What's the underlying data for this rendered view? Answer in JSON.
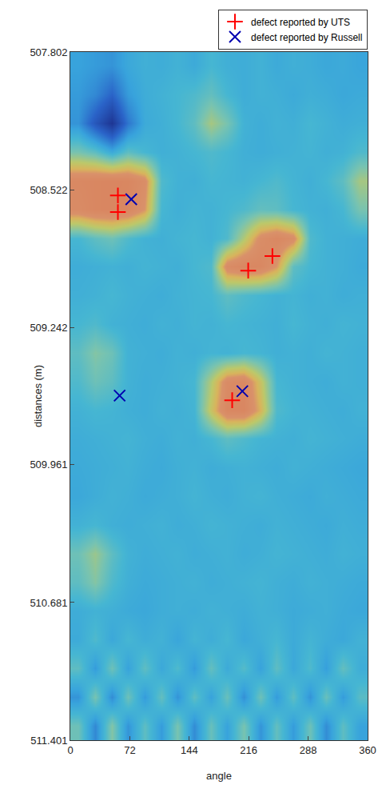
{
  "chart_data": {
    "type": "heatmap",
    "x_label": "angle",
    "y_label": "distances (m)",
    "xlim": [
      0,
      360
    ],
    "xticks": [
      0,
      72,
      144,
      216,
      288,
      360
    ],
    "ylim": [
      507.802,
      511.401
    ],
    "yticks": [
      507.802,
      508.522,
      509.242,
      509.961,
      510.681,
      511.401
    ],
    "grid": false,
    "legend": "above",
    "zlim": [
      0,
      1
    ],
    "cells": {
      "x": [
        10,
        30,
        50,
        70,
        90,
        110,
        130,
        150,
        170,
        190,
        210,
        230,
        250,
        270,
        290,
        310,
        330,
        350
      ],
      "y": [
        507.875,
        508.025,
        508.175,
        508.325,
        508.475,
        508.625,
        508.775,
        508.925,
        509.075,
        509.225,
        509.375,
        509.525,
        509.675,
        509.825,
        509.975,
        510.125,
        510.275,
        510.425,
        510.575,
        510.725,
        510.875,
        511.025,
        511.175,
        511.325
      ],
      "z": [
        [
          0.42,
          0.4,
          0.38,
          0.44,
          0.47,
          0.46,
          0.48,
          0.45,
          0.5,
          0.47,
          0.46,
          0.48,
          0.45,
          0.47,
          0.46,
          0.44,
          0.45,
          0.43
        ],
        [
          0.4,
          0.35,
          0.25,
          0.4,
          0.46,
          0.48,
          0.5,
          0.52,
          0.56,
          0.5,
          0.46,
          0.48,
          0.47,
          0.45,
          0.47,
          0.46,
          0.44,
          0.45
        ],
        [
          0.38,
          0.2,
          0.05,
          0.3,
          0.45,
          0.47,
          0.5,
          0.55,
          0.68,
          0.6,
          0.48,
          0.46,
          0.48,
          0.47,
          0.5,
          0.48,
          0.46,
          0.47
        ],
        [
          0.6,
          0.55,
          0.45,
          0.55,
          0.5,
          0.47,
          0.48,
          0.5,
          0.52,
          0.5,
          0.47,
          0.46,
          0.47,
          0.48,
          0.49,
          0.47,
          0.48,
          0.52
        ],
        [
          0.95,
          0.97,
          0.98,
          0.97,
          0.9,
          0.52,
          0.48,
          0.47,
          0.5,
          0.49,
          0.48,
          0.5,
          0.52,
          0.49,
          0.47,
          0.5,
          0.55,
          0.68
        ],
        [
          0.92,
          0.97,
          0.98,
          0.96,
          0.85,
          0.5,
          0.47,
          0.49,
          0.48,
          0.5,
          0.52,
          0.56,
          0.55,
          0.5,
          0.48,
          0.47,
          0.5,
          0.6
        ],
        [
          0.5,
          0.55,
          0.58,
          0.52,
          0.48,
          0.47,
          0.49,
          0.5,
          0.48,
          0.52,
          0.7,
          0.9,
          0.96,
          0.9,
          0.52,
          0.48,
          0.47,
          0.46
        ],
        [
          0.46,
          0.47,
          0.48,
          0.47,
          0.49,
          0.48,
          0.47,
          0.5,
          0.52,
          0.92,
          0.97,
          0.96,
          0.85,
          0.55,
          0.5,
          0.48,
          0.47,
          0.45
        ],
        [
          0.47,
          0.48,
          0.5,
          0.48,
          0.47,
          0.46,
          0.48,
          0.49,
          0.5,
          0.55,
          0.52,
          0.5,
          0.48,
          0.49,
          0.47,
          0.48,
          0.46,
          0.47
        ],
        [
          0.5,
          0.52,
          0.48,
          0.47,
          0.46,
          0.48,
          0.47,
          0.49,
          0.48,
          0.5,
          0.49,
          0.48,
          0.47,
          0.5,
          0.48,
          0.47,
          0.49,
          0.48
        ],
        [
          0.55,
          0.62,
          0.58,
          0.48,
          0.47,
          0.46,
          0.48,
          0.47,
          0.49,
          0.48,
          0.5,
          0.49,
          0.47,
          0.48,
          0.47,
          0.49,
          0.48,
          0.47
        ],
        [
          0.52,
          0.58,
          0.55,
          0.48,
          0.46,
          0.47,
          0.48,
          0.5,
          0.7,
          0.92,
          0.95,
          0.75,
          0.5,
          0.48,
          0.47,
          0.46,
          0.48,
          0.47
        ],
        [
          0.48,
          0.5,
          0.49,
          0.47,
          0.46,
          0.48,
          0.47,
          0.49,
          0.75,
          0.96,
          0.97,
          0.8,
          0.52,
          0.49,
          0.48,
          0.47,
          0.46,
          0.48
        ],
        [
          0.46,
          0.47,
          0.48,
          0.49,
          0.47,
          0.46,
          0.48,
          0.47,
          0.5,
          0.55,
          0.52,
          0.49,
          0.48,
          0.47,
          0.49,
          0.48,
          0.47,
          0.46
        ],
        [
          0.45,
          0.46,
          0.47,
          0.48,
          0.46,
          0.45,
          0.47,
          0.48,
          0.46,
          0.47,
          0.48,
          0.47,
          0.46,
          0.48,
          0.47,
          0.46,
          0.45,
          0.44
        ],
        [
          0.44,
          0.46,
          0.48,
          0.47,
          0.45,
          0.46,
          0.47,
          0.49,
          0.47,
          0.46,
          0.48,
          0.49,
          0.47,
          0.46,
          0.45,
          0.47,
          0.46,
          0.45
        ],
        [
          0.48,
          0.5,
          0.47,
          0.46,
          0.47,
          0.48,
          0.46,
          0.47,
          0.49,
          0.48,
          0.47,
          0.46,
          0.48,
          0.47,
          0.46,
          0.45,
          0.47,
          0.46
        ],
        [
          0.58,
          0.66,
          0.55,
          0.48,
          0.46,
          0.47,
          0.48,
          0.46,
          0.47,
          0.48,
          0.46,
          0.47,
          0.49,
          0.48,
          0.47,
          0.46,
          0.48,
          0.47
        ],
        [
          0.55,
          0.62,
          0.52,
          0.47,
          0.45,
          0.46,
          0.47,
          0.48,
          0.46,
          0.47,
          0.48,
          0.49,
          0.47,
          0.46,
          0.48,
          0.47,
          0.46,
          0.45
        ],
        [
          0.46,
          0.48,
          0.47,
          0.45,
          0.44,
          0.46,
          0.47,
          0.46,
          0.48,
          0.47,
          0.46,
          0.48,
          0.47,
          0.45,
          0.46,
          0.47,
          0.45,
          0.44
        ],
        [
          0.45,
          0.52,
          0.44,
          0.5,
          0.46,
          0.48,
          0.43,
          0.49,
          0.46,
          0.5,
          0.44,
          0.47,
          0.5,
          0.45,
          0.49,
          0.46,
          0.44,
          0.48
        ],
        [
          0.55,
          0.4,
          0.58,
          0.42,
          0.55,
          0.44,
          0.52,
          0.4,
          0.56,
          0.45,
          0.53,
          0.42,
          0.55,
          0.44,
          0.52,
          0.41,
          0.56,
          0.46
        ],
        [
          0.38,
          0.6,
          0.36,
          0.58,
          0.4,
          0.56,
          0.38,
          0.55,
          0.42,
          0.57,
          0.37,
          0.58,
          0.4,
          0.55,
          0.38,
          0.57,
          0.4,
          0.54
        ],
        [
          0.58,
          0.35,
          0.62,
          0.38,
          0.55,
          0.4,
          0.6,
          0.36,
          0.57,
          0.42,
          0.6,
          0.38,
          0.56,
          0.4,
          0.58,
          0.36,
          0.55,
          0.42
        ]
      ]
    },
    "series": [
      {
        "name": "defect reported by UTS",
        "type": "scatter",
        "color": "#ff0000",
        "marker": "cross",
        "x": [
          57.6,
          57.6,
          244.7,
          215.4,
          196.0
        ],
        "y": [
          508.552,
          508.639,
          508.869,
          508.945,
          509.623
        ]
      },
      {
        "name": "defect reported by Russell",
        "type": "scatter",
        "color": "#0000b0",
        "marker": "x",
        "x": [
          73.8,
          59.7,
          208.3
        ],
        "y": [
          508.572,
          509.599,
          509.576
        ]
      }
    ]
  }
}
